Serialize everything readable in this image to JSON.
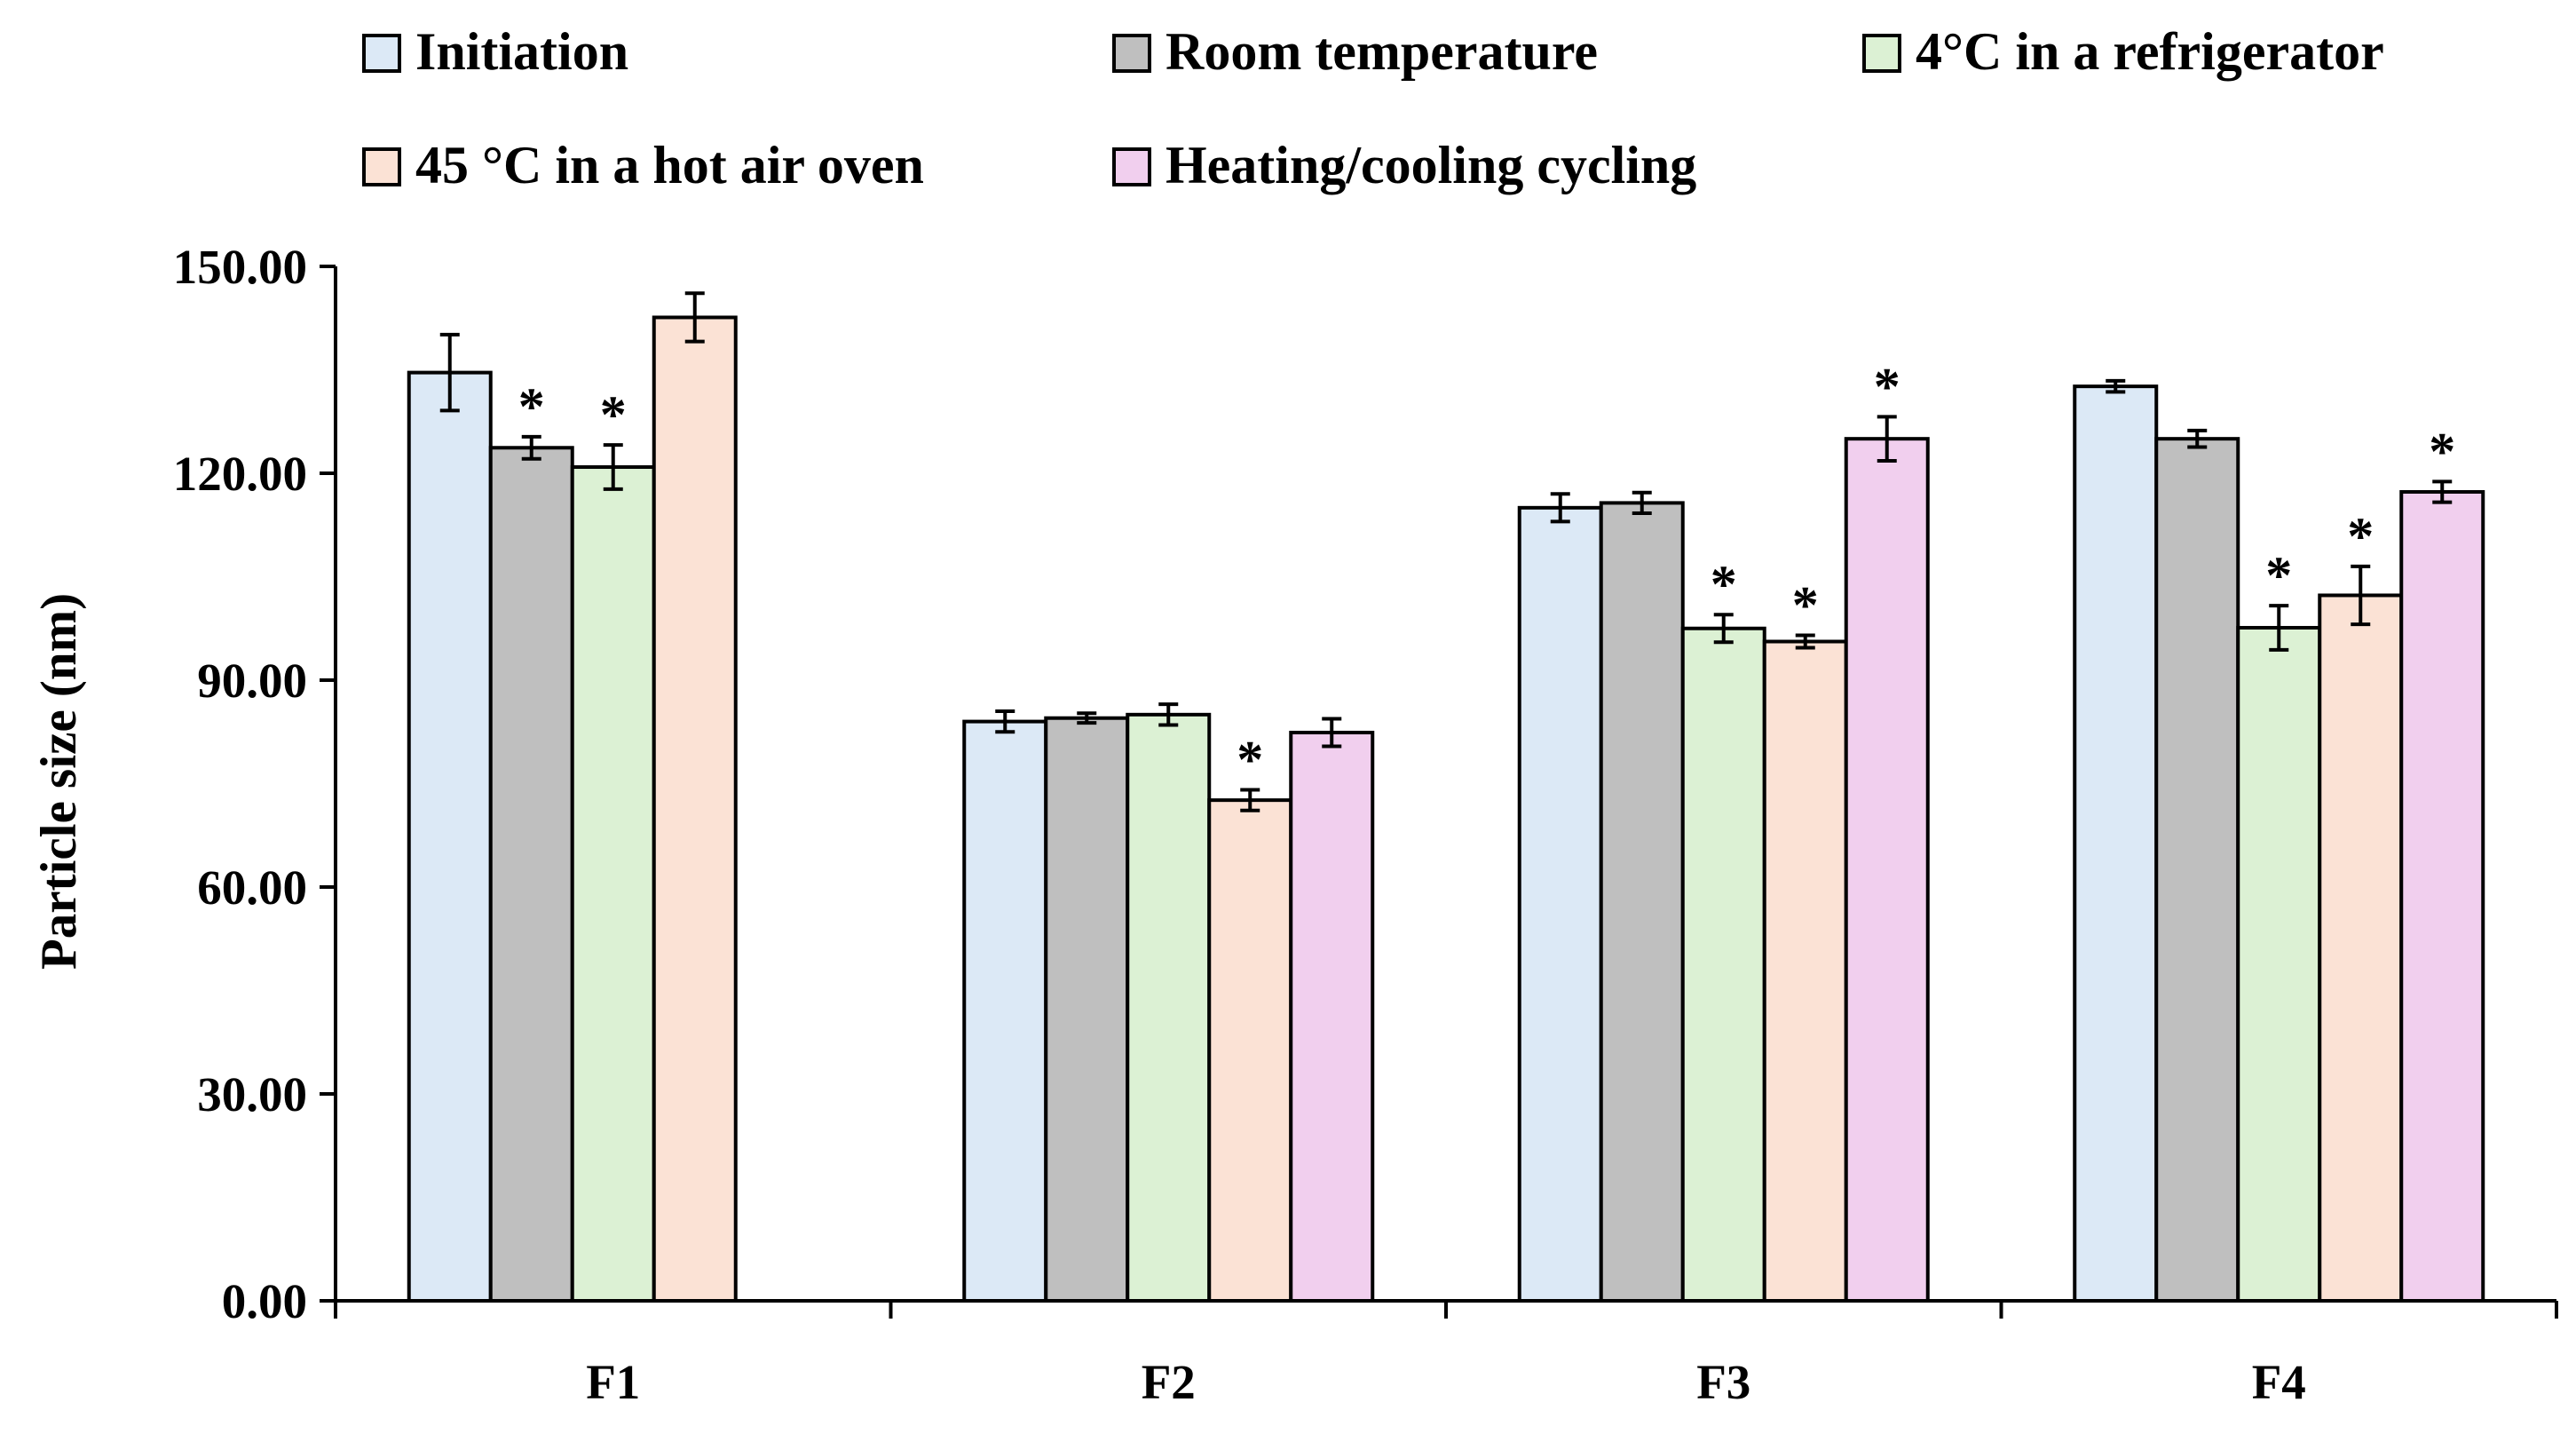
{
  "chart_data": {
    "type": "bar",
    "title": "",
    "xlabel": "",
    "ylabel": "Particle size (nm)",
    "ylim": [
      0,
      150
    ],
    "yticks": [
      "0.00",
      "30.00",
      "60.00",
      "90.00",
      "120.00",
      "150.00"
    ],
    "ytick_values": [
      0,
      30,
      60,
      90,
      120,
      150
    ],
    "grid": false,
    "legend_position": "top",
    "categories": [
      "F1",
      "F2",
      "F3",
      "F4"
    ],
    "series": [
      {
        "name": "Initiation",
        "color": "#dce9f6",
        "values": [
          134.6,
          84.0,
          115.0,
          132.6
        ],
        "errors": [
          5.5,
          1.5,
          2.0,
          0.8
        ],
        "significant": [
          false,
          false,
          false,
          false
        ]
      },
      {
        "name": "Room temperature",
        "color": "#bfbfbf",
        "values": [
          123.7,
          84.5,
          115.7,
          125.0
        ],
        "errors": [
          1.6,
          0.7,
          1.5,
          1.2
        ],
        "significant": [
          true,
          false,
          false,
          false
        ]
      },
      {
        "name": "4°C in a refrigerator",
        "color": "#dcf1d4",
        "values": [
          120.9,
          85.0,
          97.5,
          97.6
        ],
        "errors": [
          3.2,
          1.5,
          2.0,
          3.2
        ],
        "significant": [
          true,
          false,
          true,
          true
        ]
      },
      {
        "name": "45 °C in a hot air oven",
        "color": "#fbe2d5",
        "values": [
          142.6,
          72.6,
          95.6,
          102.3
        ],
        "errors": [
          3.5,
          1.5,
          0.9,
          4.2
        ],
        "significant": [
          false,
          true,
          true,
          true
        ]
      },
      {
        "name": "Heating/cooling cycling",
        "color": "#f1cfee",
        "values": [
          null,
          82.4,
          125.0,
          117.3
        ],
        "errors": [
          null,
          2.0,
          3.2,
          1.5
        ],
        "significant": [
          false,
          false,
          true,
          true
        ]
      }
    ],
    "significance_marker": "*"
  }
}
